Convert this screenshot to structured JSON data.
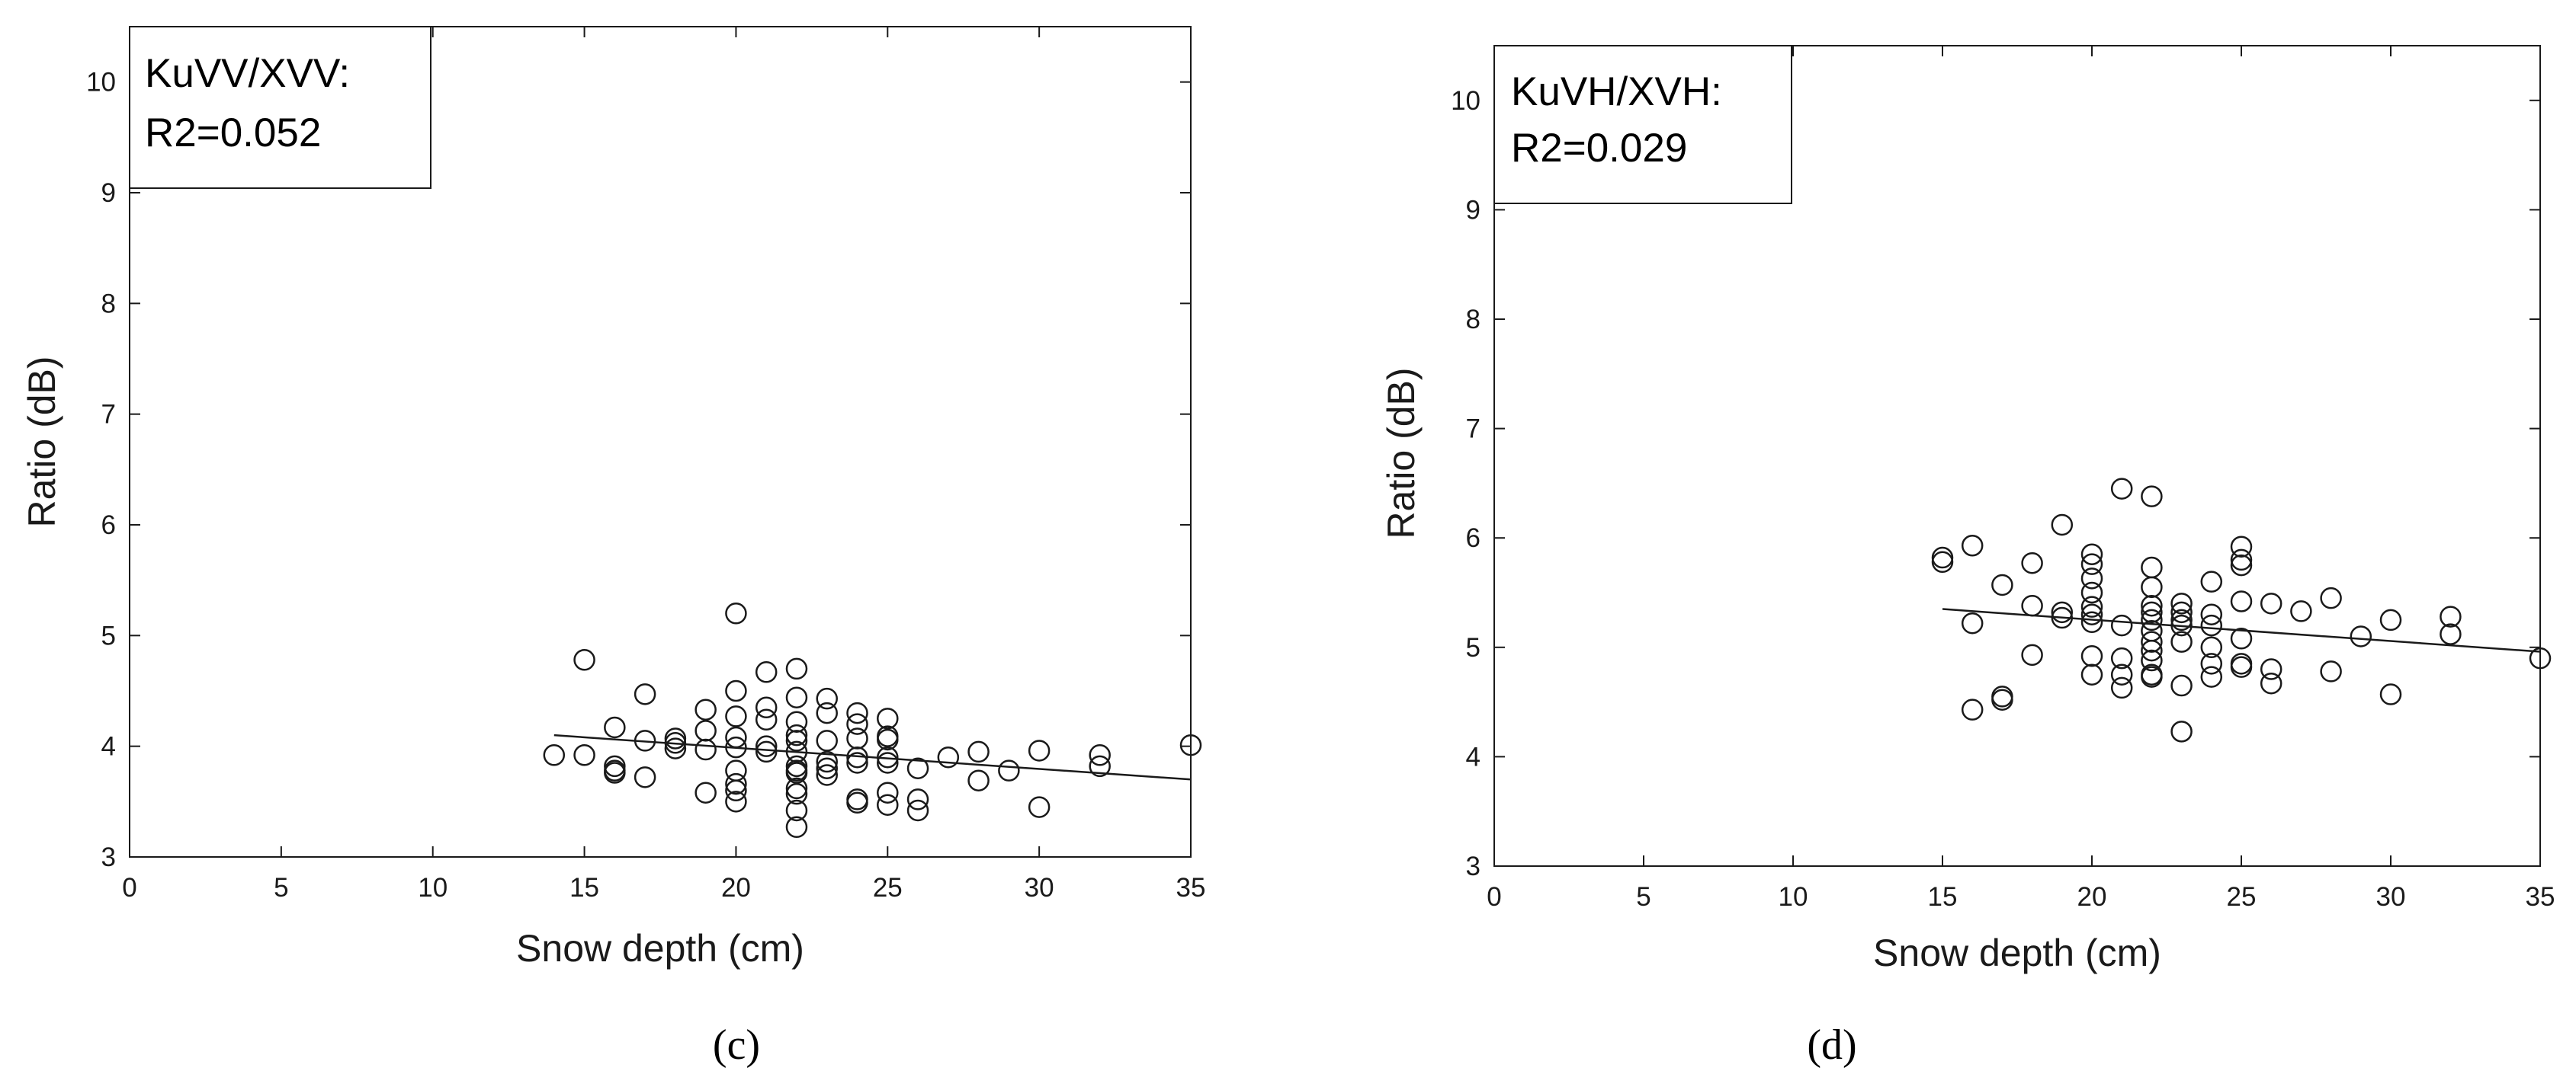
{
  "chart_data": [
    {
      "type": "scatter",
      "panel_label": "(c)",
      "xlabel": "Snow depth (cm)",
      "ylabel": "Ratio (dB)",
      "xlim": [
        0,
        35
      ],
      "ylim": [
        3,
        10.5
      ],
      "xticks": [
        0,
        5,
        10,
        15,
        20,
        25,
        30,
        35
      ],
      "yticks": [
        3,
        4,
        5,
        6,
        7,
        8,
        9,
        10
      ],
      "grid": false,
      "annotation": [
        "KuVV/XVV:",
        "R2=0.052"
      ],
      "marker": "open-circle",
      "points": [
        [
          14,
          3.92
        ],
        [
          15,
          4.78
        ],
        [
          15,
          3.92
        ],
        [
          16,
          4.17
        ],
        [
          16,
          3.82
        ],
        [
          16,
          3.78
        ],
        [
          16,
          3.76
        ],
        [
          17,
          4.47
        ],
        [
          17,
          4.05
        ],
        [
          17,
          3.72
        ],
        [
          18,
          4.07
        ],
        [
          18,
          4.03
        ],
        [
          18,
          3.98
        ],
        [
          19,
          4.33
        ],
        [
          19,
          4.14
        ],
        [
          19,
          3.97
        ],
        [
          19,
          3.58
        ],
        [
          20,
          5.2
        ],
        [
          20,
          4.5
        ],
        [
          20,
          4.27
        ],
        [
          20,
          4.08
        ],
        [
          20,
          3.99
        ],
        [
          20,
          3.78
        ],
        [
          20,
          3.66
        ],
        [
          20,
          3.6
        ],
        [
          20,
          3.5
        ],
        [
          21,
          4.67
        ],
        [
          21,
          4.35
        ],
        [
          21,
          4.24
        ],
        [
          21,
          4.0
        ],
        [
          21,
          3.95
        ],
        [
          22,
          4.7
        ],
        [
          22,
          4.44
        ],
        [
          22,
          4.22
        ],
        [
          22,
          4.1
        ],
        [
          22,
          4.05
        ],
        [
          22,
          3.95
        ],
        [
          22,
          3.82
        ],
        [
          22,
          3.78
        ],
        [
          22,
          3.76
        ],
        [
          22,
          3.62
        ],
        [
          22,
          3.57
        ],
        [
          22,
          3.42
        ],
        [
          22,
          3.27
        ],
        [
          23,
          4.43
        ],
        [
          23,
          4.3
        ],
        [
          23,
          4.05
        ],
        [
          23,
          3.86
        ],
        [
          23,
          3.8
        ],
        [
          23,
          3.74
        ],
        [
          24,
          4.3
        ],
        [
          24,
          4.2
        ],
        [
          24,
          4.07
        ],
        [
          24,
          3.9
        ],
        [
          24,
          3.85
        ],
        [
          24,
          3.52
        ],
        [
          24,
          3.49
        ],
        [
          25,
          4.25
        ],
        [
          25,
          4.09
        ],
        [
          25,
          4.06
        ],
        [
          25,
          3.9
        ],
        [
          25,
          3.85
        ],
        [
          25,
          3.58
        ],
        [
          25,
          3.47
        ],
        [
          26,
          3.8
        ],
        [
          26,
          3.52
        ],
        [
          26,
          3.42
        ],
        [
          27,
          3.9
        ],
        [
          28,
          3.95
        ],
        [
          28,
          3.69
        ],
        [
          29,
          3.78
        ],
        [
          30,
          3.96
        ],
        [
          30,
          3.45
        ],
        [
          32,
          3.92
        ],
        [
          32,
          3.82
        ],
        [
          35,
          4.01
        ]
      ],
      "fit_line": [
        [
          14,
          4.1
        ],
        [
          35,
          3.7
        ]
      ]
    },
    {
      "type": "scatter",
      "panel_label": "(d)",
      "xlabel": "Snow depth (cm)",
      "ylabel": "Ratio (dB)",
      "xlim": [
        0,
        35
      ],
      "ylim": [
        3,
        10.5
      ],
      "xticks": [
        0,
        5,
        10,
        15,
        20,
        25,
        30,
        35
      ],
      "yticks": [
        3,
        4,
        5,
        6,
        7,
        8,
        9,
        10
      ],
      "grid": false,
      "annotation": [
        "KuVH/XVH:",
        "R2=0.029"
      ],
      "marker": "open-circle",
      "points": [
        [
          15,
          5.82
        ],
        [
          15,
          5.78
        ],
        [
          16,
          5.93
        ],
        [
          16,
          5.22
        ],
        [
          16,
          4.43
        ],
        [
          17,
          5.57
        ],
        [
          17,
          4.55
        ],
        [
          17,
          4.52
        ],
        [
          18,
          5.77
        ],
        [
          18,
          5.38
        ],
        [
          18,
          4.93
        ],
        [
          19,
          6.12
        ],
        [
          19,
          5.32
        ],
        [
          19,
          5.27
        ],
        [
          20,
          5.85
        ],
        [
          20,
          5.76
        ],
        [
          20,
          5.63
        ],
        [
          20,
          5.5
        ],
        [
          20,
          5.37
        ],
        [
          20,
          5.3
        ],
        [
          20,
          5.23
        ],
        [
          20,
          4.92
        ],
        [
          20,
          4.75
        ],
        [
          21,
          6.45
        ],
        [
          21,
          5.2
        ],
        [
          21,
          4.9
        ],
        [
          21,
          4.75
        ],
        [
          21,
          4.63
        ],
        [
          22,
          6.38
        ],
        [
          22,
          5.73
        ],
        [
          22,
          5.55
        ],
        [
          22,
          5.38
        ],
        [
          22,
          5.32
        ],
        [
          22,
          5.25
        ],
        [
          22,
          5.15
        ],
        [
          22,
          5.05
        ],
        [
          22,
          4.97
        ],
        [
          22,
          4.88
        ],
        [
          22,
          4.75
        ],
        [
          22,
          4.73
        ],
        [
          23,
          5.4
        ],
        [
          23,
          5.32
        ],
        [
          23,
          5.25
        ],
        [
          23,
          5.2
        ],
        [
          23,
          5.05
        ],
        [
          23,
          4.65
        ],
        [
          23,
          4.23
        ],
        [
          24,
          5.6
        ],
        [
          24,
          5.3
        ],
        [
          24,
          5.2
        ],
        [
          24,
          5.0
        ],
        [
          24,
          4.85
        ],
        [
          24,
          4.73
        ],
        [
          25,
          5.92
        ],
        [
          25,
          5.8
        ],
        [
          25,
          5.75
        ],
        [
          25,
          5.42
        ],
        [
          25,
          5.08
        ],
        [
          25,
          4.85
        ],
        [
          25,
          4.82
        ],
        [
          26,
          5.4
        ],
        [
          26,
          4.8
        ],
        [
          26,
          4.67
        ],
        [
          27,
          5.33
        ],
        [
          28,
          5.45
        ],
        [
          28,
          4.78
        ],
        [
          29,
          5.1
        ],
        [
          30,
          5.25
        ],
        [
          30,
          4.57
        ],
        [
          32,
          5.28
        ],
        [
          32,
          5.12
        ],
        [
          35,
          4.9
        ]
      ],
      "fit_line": [
        [
          15,
          5.35
        ],
        [
          35,
          4.96
        ]
      ]
    }
  ]
}
